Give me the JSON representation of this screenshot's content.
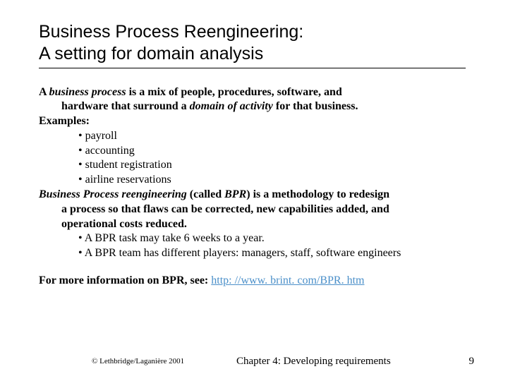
{
  "title_line1": "Business Process Reengineering:",
  "title_line2": "A setting for domain analysis",
  "def": {
    "pre": "A ",
    "term": "business process",
    "post": " is a mix of people, procedures, software, and",
    "line2_pre": "hardware that surround a ",
    "line2_term": "domain of activity",
    "line2_post": " for that business."
  },
  "examples_label": "Examples:",
  "examples": {
    "b1": "•   payroll",
    "b2": "•   accounting",
    "b3": "•   student registration",
    "b4": "•   airline reservations"
  },
  "bpr": {
    "term": "Business Process reengineering",
    "mid": " (called ",
    "abbr": "BPR",
    "post": ") is a methodology to redesign",
    "line2": "a process so that flaws can be corrected, new capabilities added, and",
    "line3": "operational costs reduced.",
    "b1": "•   A BPR task may take 6 weeks to a year.",
    "b2": "•   A BPR team has different players: managers, staff, software engineers"
  },
  "more_info_pre": "For more information on BPR, see: ",
  "more_info_link": "http: //www. brint. com/BPR. htm",
  "footer": {
    "copyright": "© Lethbridge/Laganière 2001",
    "chapter": "Chapter 4: Developing requirements",
    "page": "9"
  }
}
